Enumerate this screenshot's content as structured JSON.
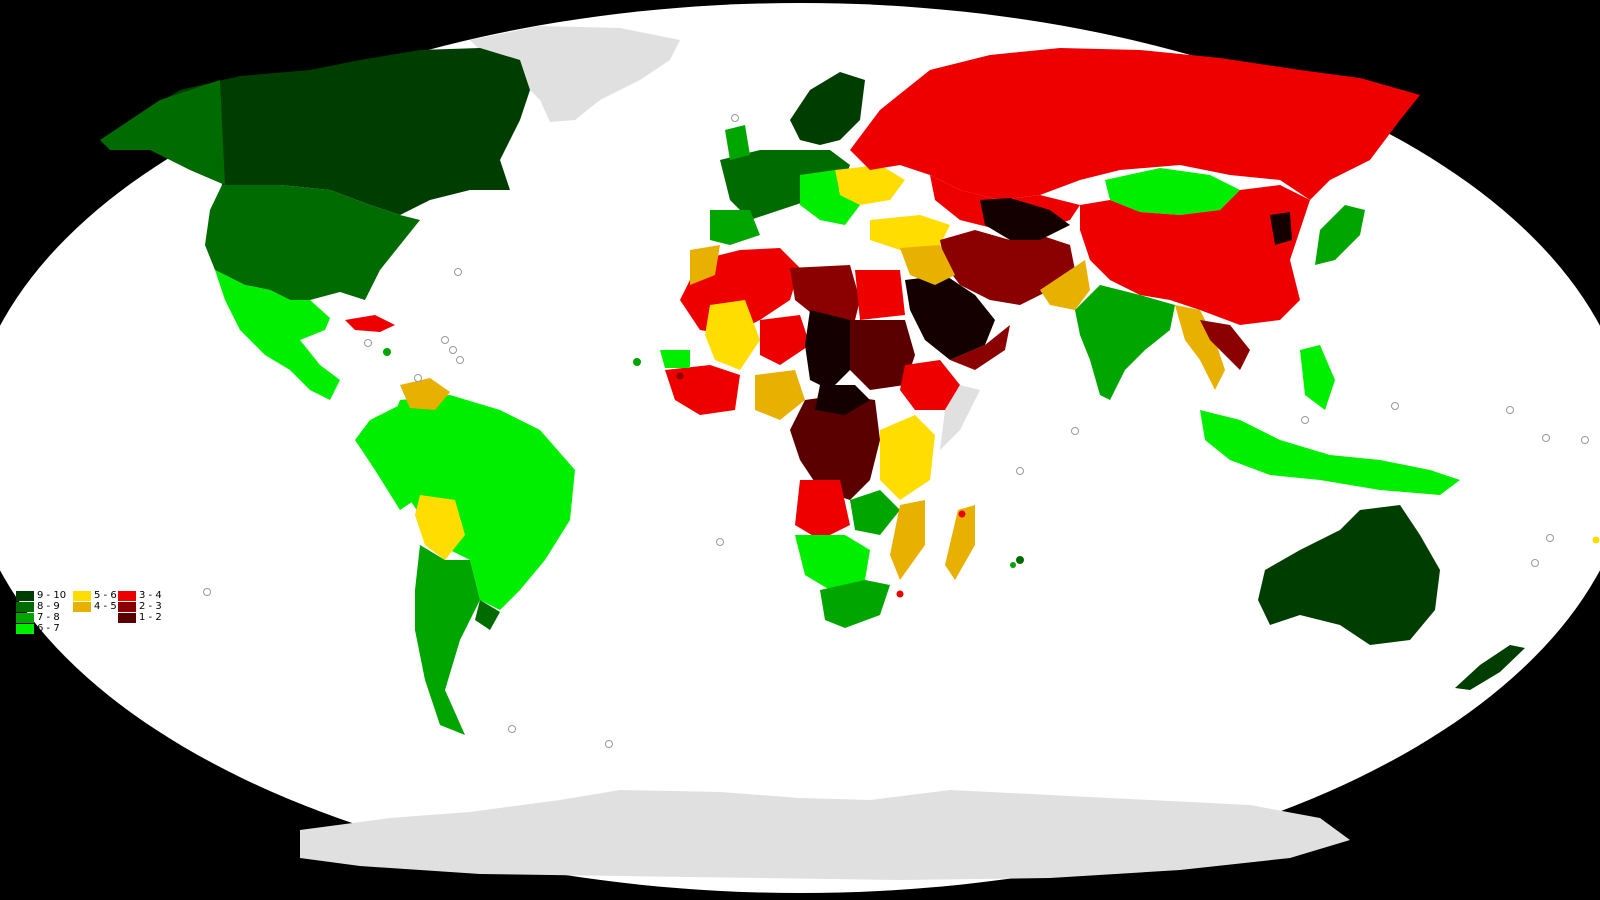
{
  "legend": {
    "items": [
      {
        "label": "9 - 10",
        "color": "#003d00"
      },
      {
        "label": "8 - 9",
        "color": "#006b00"
      },
      {
        "label": "7 - 8",
        "color": "#00a500"
      },
      {
        "label": "6 - 7",
        "color": "#00ee00"
      },
      {
        "label": "5 - 6",
        "color": "#ffdd00"
      },
      {
        "label": "4 - 5",
        "color": "#e8b000"
      },
      {
        "label": "3 - 4",
        "color": "#ee0000"
      },
      {
        "label": "2 - 3",
        "color": "#8b0000"
      },
      {
        "label": "1 - 2",
        "color": "#5a0000"
      }
    ]
  },
  "colors": {
    "background": "#000000",
    "ocean": "#ffffff",
    "no_data": "#e0e0e0",
    "lowest_score": "#150000",
    "island_dot_outline": "#9a9a9a"
  }
}
